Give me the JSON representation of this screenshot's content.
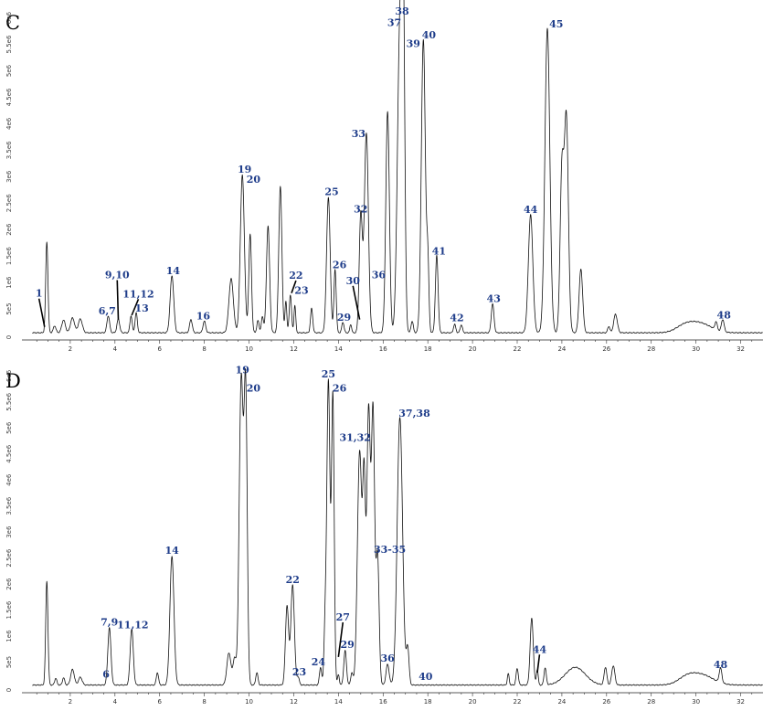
{
  "chart_data": [
    {
      "type": "line",
      "panel_label": "C",
      "xlim": [
        0,
        33
      ],
      "ylim": [
        0,
        6200000
      ],
      "x_ticks": [
        "2",
        "4",
        "6",
        "8",
        "10",
        "12",
        "14",
        "16",
        "18",
        "20",
        "22",
        "24",
        "26",
        "28",
        "30",
        "32"
      ],
      "y_ticks": [
        "5e5",
        "1e6",
        "1.5e6",
        "2e6",
        "2.5e6",
        "3e6",
        "3.5e6",
        "4e6",
        "4.5e6",
        "5e6",
        "5.5e6",
        "6e6"
      ],
      "baseline": 50000,
      "peaks": [
        {
          "x": 0.95,
          "y": 1720000,
          "w": 0.05
        },
        {
          "x": 1.3,
          "y": 130000,
          "w": 0.06
        },
        {
          "x": 1.7,
          "y": 240000,
          "w": 0.08
        },
        {
          "x": 2.1,
          "y": 280000,
          "w": 0.09
        },
        {
          "x": 2.45,
          "y": 260000,
          "w": 0.09
        },
        {
          "x": 3.7,
          "y": 320000,
          "w": 0.06
        },
        {
          "x": 4.15,
          "y": 260000,
          "w": 0.06
        },
        {
          "x": 4.72,
          "y": 320000,
          "w": 0.05
        },
        {
          "x": 4.95,
          "y": 380000,
          "w": 0.05
        },
        {
          "x": 6.55,
          "y": 1080000,
          "w": 0.08
        },
        {
          "x": 7.4,
          "y": 250000,
          "w": 0.06
        },
        {
          "x": 8.0,
          "y": 220000,
          "w": 0.06
        },
        {
          "x": 9.2,
          "y": 1020000,
          "w": 0.1
        },
        {
          "x": 9.7,
          "y": 2980000,
          "w": 0.09
        },
        {
          "x": 10.05,
          "y": 1860000,
          "w": 0.06
        },
        {
          "x": 10.4,
          "y": 230000,
          "w": 0.05
        },
        {
          "x": 10.6,
          "y": 300000,
          "w": 0.05
        },
        {
          "x": 10.85,
          "y": 2020000,
          "w": 0.07
        },
        {
          "x": 11.4,
          "y": 2760000,
          "w": 0.07
        },
        {
          "x": 11.65,
          "y": 600000,
          "w": 0.04
        },
        {
          "x": 11.85,
          "y": 720000,
          "w": 0.05
        },
        {
          "x": 12.05,
          "y": 520000,
          "w": 0.04
        },
        {
          "x": 12.8,
          "y": 460000,
          "w": 0.05
        },
        {
          "x": 13.55,
          "y": 2560000,
          "w": 0.08
        },
        {
          "x": 13.85,
          "y": 1200000,
          "w": 0.05
        },
        {
          "x": 14.2,
          "y": 200000,
          "w": 0.05
        },
        {
          "x": 14.55,
          "y": 160000,
          "w": 0.04
        },
        {
          "x": 15.0,
          "y": 2220000,
          "w": 0.07
        },
        {
          "x": 15.25,
          "y": 3780000,
          "w": 0.09
        },
        {
          "x": 16.2,
          "y": 4180000,
          "w": 0.08
        },
        {
          "x": 16.75,
          "y": 5700000,
          "w": 0.11
        },
        {
          "x": 16.9,
          "y": 5400000,
          "w": 0.07
        },
        {
          "x": 17.3,
          "y": 220000,
          "w": 0.05
        },
        {
          "x": 17.8,
          "y": 5550000,
          "w": 0.09
        },
        {
          "x": 18.0,
          "y": 1250000,
          "w": 0.05
        },
        {
          "x": 18.4,
          "y": 1460000,
          "w": 0.06
        },
        {
          "x": 19.2,
          "y": 160000,
          "w": 0.05
        },
        {
          "x": 19.5,
          "y": 150000,
          "w": 0.05
        },
        {
          "x": 20.9,
          "y": 550000,
          "w": 0.06
        },
        {
          "x": 22.6,
          "y": 2230000,
          "w": 0.1
        },
        {
          "x": 23.35,
          "y": 5750000,
          "w": 0.11
        },
        {
          "x": 24.0,
          "y": 3000000,
          "w": 0.08
        },
        {
          "x": 24.2,
          "y": 4050000,
          "w": 0.09
        },
        {
          "x": 24.85,
          "y": 1200000,
          "w": 0.08
        },
        {
          "x": 26.1,
          "y": 120000,
          "w": 0.05
        },
        {
          "x": 26.4,
          "y": 350000,
          "w": 0.08
        },
        {
          "x": 29.5,
          "y": 120000,
          "w": 0.4
        },
        {
          "x": 30.2,
          "y": 170000,
          "w": 0.5
        },
        {
          "x": 30.9,
          "y": 150000,
          "w": 0.05
        },
        {
          "x": 31.2,
          "y": 230000,
          "w": 0.06
        }
      ],
      "labels": [
        {
          "text": "1",
          "x": 0.6,
          "y": 730000,
          "lx": 0.85,
          "ly": 160000
        },
        {
          "text": "6,7",
          "x": 3.65,
          "y": 400000
        },
        {
          "text": "9,10",
          "x": 4.1,
          "y": 1080000,
          "lx": 4.15,
          "ly": 300000
        },
        {
          "text": "11,12",
          "x": 5.05,
          "y": 720000,
          "lx": 4.75,
          "ly": 380000
        },
        {
          "text": "13",
          "x": 5.2,
          "y": 450000
        },
        {
          "text": "14",
          "x": 6.6,
          "y": 1160000
        },
        {
          "text": "16",
          "x": 7.95,
          "y": 300000
        },
        {
          "text": "19",
          "x": 9.8,
          "y": 3070000
        },
        {
          "text": "20",
          "x": 10.2,
          "y": 2880000
        },
        {
          "text": "22",
          "x": 12.1,
          "y": 1070000,
          "lx": 11.9,
          "ly": 800000
        },
        {
          "text": "23",
          "x": 12.35,
          "y": 790000
        },
        {
          "text": "25",
          "x": 13.7,
          "y": 2650000
        },
        {
          "text": "26",
          "x": 14.05,
          "y": 1270000
        },
        {
          "text": "29",
          "x": 14.25,
          "y": 280000
        },
        {
          "text": "30",
          "x": 14.65,
          "y": 970000,
          "lx": 14.95,
          "ly": 300000
        },
        {
          "text": "32",
          "x": 15.0,
          "y": 2320000
        },
        {
          "text": "33",
          "x": 14.9,
          "y": 3750000
        },
        {
          "text": "36",
          "x": 15.8,
          "y": 1080000
        },
        {
          "text": "37",
          "x": 16.5,
          "y": 5850000
        },
        {
          "text": "38",
          "x": 16.85,
          "y": 6060000
        },
        {
          "text": "39",
          "x": 17.35,
          "y": 5450000
        },
        {
          "text": "40",
          "x": 18.05,
          "y": 5610000
        },
        {
          "text": "41",
          "x": 18.5,
          "y": 1530000
        },
        {
          "text": "42",
          "x": 19.3,
          "y": 270000
        },
        {
          "text": "43",
          "x": 20.95,
          "y": 630000
        },
        {
          "text": "44",
          "x": 22.6,
          "y": 2310000
        },
        {
          "text": "45",
          "x": 23.75,
          "y": 5820000
        },
        {
          "text": "48",
          "x": 31.25,
          "y": 320000
        }
      ]
    },
    {
      "type": "line",
      "panel_label": "D",
      "xlim": [
        0,
        33
      ],
      "ylim": [
        0,
        6200000
      ],
      "x_ticks": [
        "2",
        "4",
        "6",
        "8",
        "10",
        "12",
        "14",
        "16",
        "18",
        "20",
        "22",
        "24",
        "26",
        "28",
        "30",
        "32"
      ],
      "y_ticks": [
        "5e5",
        "1e6",
        "1.5e6",
        "2e6",
        "2.5e6",
        "3e6",
        "3.5e6",
        "4e6",
        "4.5e6",
        "5e6",
        "5.5e6",
        "6e6"
      ],
      "baseline": 60000,
      "peaks": [
        {
          "x": 0.95,
          "y": 2000000,
          "w": 0.05
        },
        {
          "x": 1.35,
          "y": 130000,
          "w": 0.05
        },
        {
          "x": 1.7,
          "y": 140000,
          "w": 0.05
        },
        {
          "x": 2.1,
          "y": 300000,
          "w": 0.08
        },
        {
          "x": 2.45,
          "y": 150000,
          "w": 0.08
        },
        {
          "x": 3.75,
          "y": 1100000,
          "w": 0.07
        },
        {
          "x": 4.75,
          "y": 1080000,
          "w": 0.07
        },
        {
          "x": 5.9,
          "y": 240000,
          "w": 0.05
        },
        {
          "x": 6.55,
          "y": 2480000,
          "w": 0.09
        },
        {
          "x": 9.1,
          "y": 620000,
          "w": 0.09
        },
        {
          "x": 9.35,
          "y": 500000,
          "w": 0.07
        },
        {
          "x": 9.65,
          "y": 5900000,
          "w": 0.09
        },
        {
          "x": 9.85,
          "y": 5500000,
          "w": 0.07
        },
        {
          "x": 10.35,
          "y": 240000,
          "w": 0.05
        },
        {
          "x": 11.7,
          "y": 1520000,
          "w": 0.07
        },
        {
          "x": 11.95,
          "y": 1920000,
          "w": 0.08
        },
        {
          "x": 12.2,
          "y": 150000,
          "w": 0.05
        },
        {
          "x": 13.2,
          "y": 340000,
          "w": 0.05
        },
        {
          "x": 13.4,
          "y": 1000000,
          "w": 0.05
        },
        {
          "x": 13.55,
          "y": 5850000,
          "w": 0.07
        },
        {
          "x": 13.75,
          "y": 5550000,
          "w": 0.06
        },
        {
          "x": 14.0,
          "y": 200000,
          "w": 0.04
        },
        {
          "x": 14.3,
          "y": 660000,
          "w": 0.06
        },
        {
          "x": 14.6,
          "y": 230000,
          "w": 0.05
        },
        {
          "x": 14.95,
          "y": 4500000,
          "w": 0.1
        },
        {
          "x": 15.15,
          "y": 3500000,
          "w": 0.06
        },
        {
          "x": 15.35,
          "y": 5300000,
          "w": 0.08
        },
        {
          "x": 15.55,
          "y": 5150000,
          "w": 0.07
        },
        {
          "x": 15.75,
          "y": 2500000,
          "w": 0.07
        },
        {
          "x": 16.2,
          "y": 400000,
          "w": 0.07
        },
        {
          "x": 16.75,
          "y": 5150000,
          "w": 0.12
        },
        {
          "x": 17.1,
          "y": 700000,
          "w": 0.06
        },
        {
          "x": 21.6,
          "y": 220000,
          "w": 0.04
        },
        {
          "x": 22.0,
          "y": 320000,
          "w": 0.05
        },
        {
          "x": 22.65,
          "y": 1280000,
          "w": 0.07
        },
        {
          "x": 22.9,
          "y": 300000,
          "w": 0.04
        },
        {
          "x": 23.25,
          "y": 330000,
          "w": 0.05
        },
        {
          "x": 24.6,
          "y": 340000,
          "w": 0.45
        },
        {
          "x": 25.95,
          "y": 340000,
          "w": 0.06
        },
        {
          "x": 26.3,
          "y": 370000,
          "w": 0.07
        },
        {
          "x": 29.6,
          "y": 140000,
          "w": 0.4
        },
        {
          "x": 30.3,
          "y": 180000,
          "w": 0.5
        },
        {
          "x": 31.1,
          "y": 280000,
          "w": 0.06
        }
      ],
      "labels": [
        {
          "text": "6",
          "x": 3.6,
          "y": 200000
        },
        {
          "text": "7,9",
          "x": 3.75,
          "y": 1200000
        },
        {
          "text": "11,12",
          "x": 4.8,
          "y": 1150000
        },
        {
          "text": "14",
          "x": 6.55,
          "y": 2580000
        },
        {
          "text": "19",
          "x": 9.7,
          "y": 6050000
        },
        {
          "text": "20",
          "x": 10.2,
          "y": 5700000
        },
        {
          "text": "22",
          "x": 11.95,
          "y": 2020000
        },
        {
          "text": "23",
          "x": 12.25,
          "y": 250000
        },
        {
          "text": "24",
          "x": 13.1,
          "y": 440000
        },
        {
          "text": "25",
          "x": 13.55,
          "y": 5970000
        },
        {
          "text": "26",
          "x": 14.05,
          "y": 5700000
        },
        {
          "text": "27",
          "x": 14.2,
          "y": 1300000,
          "lx": 14.0,
          "ly": 600000
        },
        {
          "text": "29",
          "x": 14.4,
          "y": 770000
        },
        {
          "text": "31,32",
          "x": 14.75,
          "y": 4750000
        },
        {
          "text": "33-35",
          "x": 16.3,
          "y": 2600000
        },
        {
          "text": "36",
          "x": 16.2,
          "y": 510000
        },
        {
          "text": "37,38",
          "x": 17.4,
          "y": 5220000
        },
        {
          "text": "40",
          "x": 17.9,
          "y": 160000
        },
        {
          "text": "44",
          "x": 23.0,
          "y": 680000,
          "lx": 22.9,
          "ly": 300000
        },
        {
          "text": "48",
          "x": 31.1,
          "y": 390000
        }
      ]
    }
  ]
}
